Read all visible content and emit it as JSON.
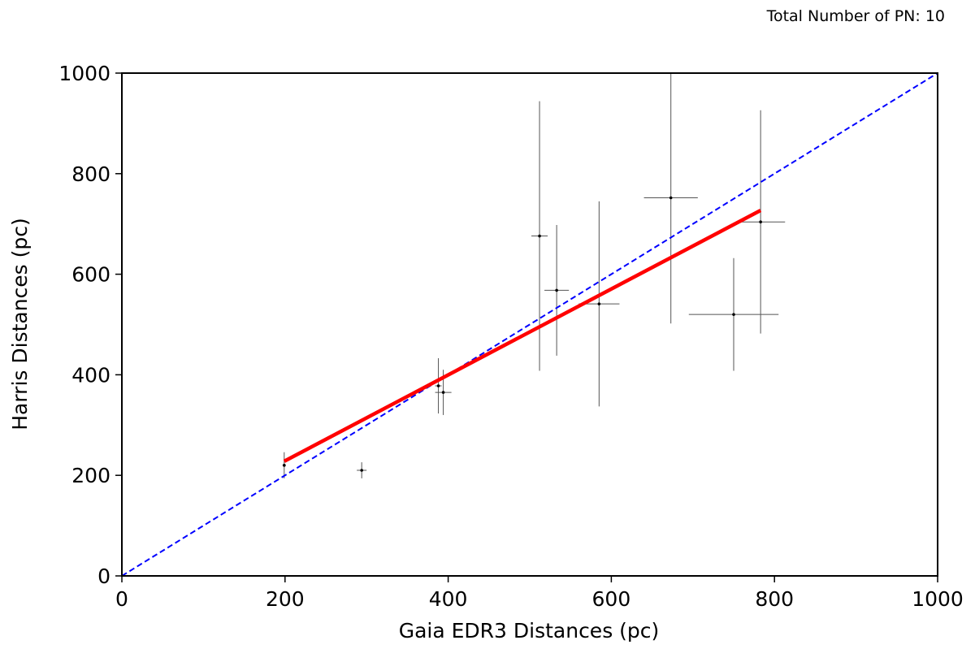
{
  "annotation": "Total Number of PN: 10",
  "colors": {
    "error_bar": "#555555",
    "point": "#000000",
    "fit_line": "#ff0000",
    "reference_line": "#0000ff",
    "axes": "#000000"
  },
  "chart_data": {
    "type": "scatter",
    "xlabel": "Gaia EDR3 Distances (pc)",
    "ylabel": "Harris Distances (pc)",
    "xlim": [
      0,
      1000
    ],
    "ylim": [
      0,
      1000
    ],
    "xticks": [
      0,
      200,
      400,
      600,
      800,
      1000
    ],
    "yticks": [
      0,
      200,
      400,
      600,
      800,
      1000
    ],
    "grid": false,
    "series": [
      {
        "style": "points-with-errorbars",
        "points": [
          {
            "x": 199,
            "y": 220,
            "xerr": 2,
            "yerr": 26
          },
          {
            "x": 294,
            "y": 210,
            "xerr": 6,
            "yerr": 16
          },
          {
            "x": 388,
            "y": 378,
            "xerr": 4,
            "yerr": 55
          },
          {
            "x": 394,
            "y": 365,
            "xerr": 10,
            "yerr": 45
          },
          {
            "x": 512,
            "y": 676,
            "xerr": 10,
            "yerr": 268
          },
          {
            "x": 533,
            "y": 568,
            "xerr": 15,
            "yerr": 130
          },
          {
            "x": 585,
            "y": 541,
            "xerr": 25,
            "yerr": 204
          },
          {
            "x": 673,
            "y": 752,
            "xerr": 33,
            "yerr": 250
          },
          {
            "x": 750,
            "y": 520,
            "xerr": 55,
            "yerr": 112
          },
          {
            "x": 783,
            "y": 704,
            "xerr": 30,
            "yerr": 222
          }
        ]
      },
      {
        "style": "fit-line",
        "x": [
          199,
          783
        ],
        "y": [
          228,
          727
        ]
      },
      {
        "style": "reference-line",
        "x": [
          0,
          1000
        ],
        "y": [
          0,
          1000
        ]
      }
    ]
  }
}
